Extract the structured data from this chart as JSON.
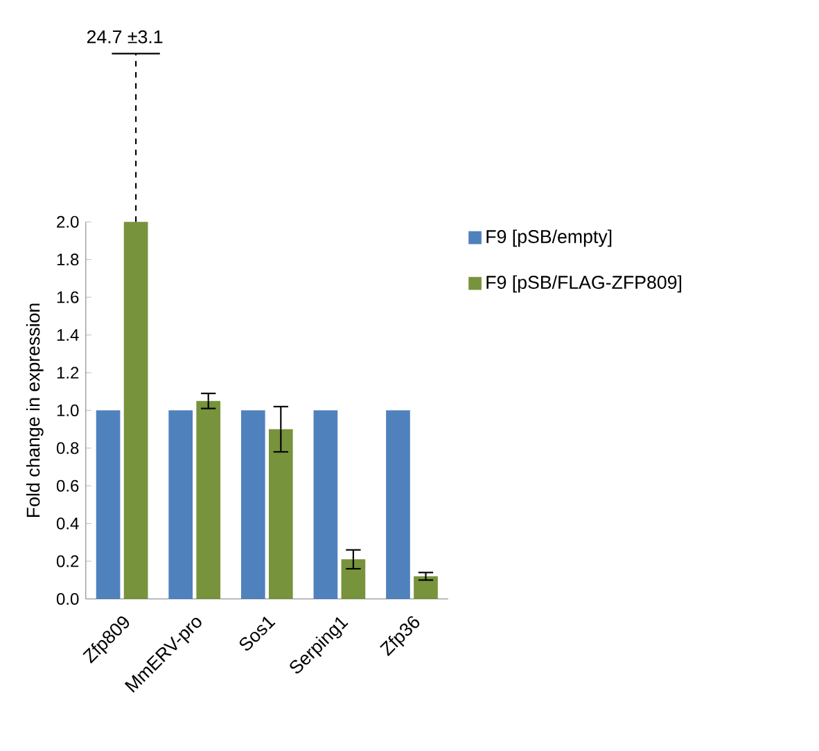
{
  "chart_data": {
    "type": "bar",
    "ylabel": "Fold change in expression",
    "categories": [
      "Zfp809",
      "MmERV-pro",
      "Sos1",
      "Serping1",
      "Zfp36"
    ],
    "series": [
      {
        "name": "F9 [pSB/empty]",
        "color": "#4f81bd",
        "values": [
          1.0,
          1.0,
          1.0,
          1.0,
          1.0
        ]
      },
      {
        "name": "F9 [pSB/FLAG-ZFP809]",
        "color": "#77933c",
        "values": [
          2.0,
          1.05,
          0.9,
          0.21,
          0.12
        ],
        "errors": [
          null,
          0.04,
          0.12,
          0.05,
          0.02
        ]
      }
    ],
    "ylim": [
      0,
      2.0
    ],
    "yticks": [
      {
        "value": 0,
        "label": "0.0"
      },
      {
        "value": 0.2,
        "label": "0.2"
      },
      {
        "value": 0.4,
        "label": "0.4"
      },
      {
        "value": 0.6,
        "label": "0.6"
      },
      {
        "value": 0.8,
        "label": "0.8"
      },
      {
        "value": 1.0,
        "label": "1.0"
      },
      {
        "value": 1.2,
        "label": "1.2"
      },
      {
        "value": 1.4,
        "label": "1.4"
      },
      {
        "value": 1.6,
        "label": "1.6"
      },
      {
        "value": 1.8,
        "label": "1.8"
      },
      {
        "value": 2.0,
        "label": "2.0"
      }
    ],
    "annotations": [
      "24.7 ±3.1"
    ],
    "legend": "right",
    "grid": false
  }
}
